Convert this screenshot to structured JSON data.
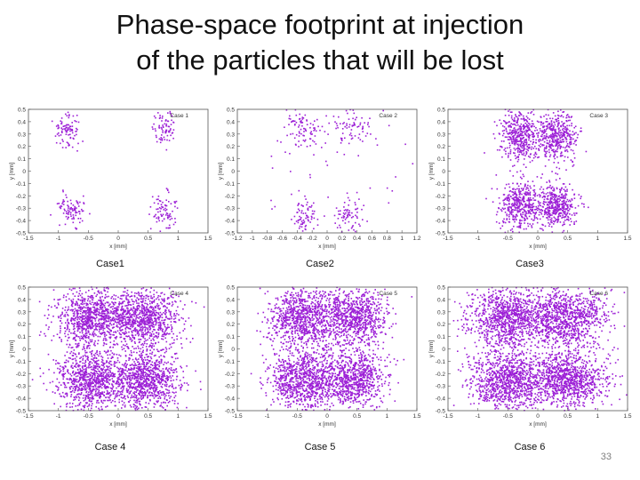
{
  "page": {
    "title_line1": "Phase-space footprint at injection",
    "title_line2": "of the particles that will be lost",
    "slide_number": "33"
  },
  "colors": {
    "points": "#9c1fd6",
    "axis": "#333333",
    "frame": "#555555"
  },
  "chart_data": [
    {
      "type": "scatter",
      "id": "case1",
      "caption": "Case1",
      "legend": "Case 1",
      "xlabel": "x [mm]",
      "ylabel": "y [mm]",
      "xlim": [
        -1.5,
        1.5
      ],
      "ylim": [
        -0.5,
        0.5
      ],
      "xticks": [
        "-1.5",
        "-1",
        "-0.5",
        "0",
        "0.5",
        "1",
        "1.5"
      ],
      "yticks": [
        "-0.5",
        "-0.4",
        "-0.3",
        "-0.2",
        "-0.1",
        "0",
        "0.1",
        "0.2",
        "0.3",
        "0.4",
        "0.5"
      ],
      "clusters": [
        {
          "cx": -0.85,
          "cy": 0.33,
          "sx": 0.11,
          "sy": 0.07,
          "n": 90
        },
        {
          "cx": 0.78,
          "cy": 0.35,
          "sx": 0.1,
          "sy": 0.07,
          "n": 80
        },
        {
          "cx": -0.78,
          "cy": -0.32,
          "sx": 0.12,
          "sy": 0.07,
          "n": 90
        },
        {
          "cx": 0.78,
          "cy": -0.32,
          "sx": 0.1,
          "sy": 0.07,
          "n": 80
        }
      ]
    },
    {
      "type": "scatter",
      "id": "case2",
      "caption": "Case2",
      "legend": "Case 2",
      "xlabel": "x [mm]",
      "ylabel": "y [mm]",
      "xlim": [
        -1.2,
        1.2
      ],
      "ylim": [
        -0.5,
        0.5
      ],
      "xticks": [
        "-1.2",
        "-1",
        "-0.8",
        "-0.6",
        "-0.4",
        "-0.2",
        "0",
        "0.2",
        "0.4",
        "0.6",
        "0.8",
        "1",
        "1.2"
      ],
      "yticks": [
        "-0.5",
        "-0.4",
        "-0.3",
        "-0.2",
        "-0.1",
        "0",
        "0.1",
        "0.2",
        "0.3",
        "0.4",
        "0.5"
      ],
      "clusters": [
        {
          "cx": -0.3,
          "cy": 0.35,
          "sx": 0.12,
          "sy": 0.08,
          "n": 90
        },
        {
          "cx": 0.32,
          "cy": 0.36,
          "sx": 0.12,
          "sy": 0.08,
          "n": 70
        },
        {
          "cx": -0.3,
          "cy": -0.36,
          "sx": 0.08,
          "sy": 0.07,
          "n": 70
        },
        {
          "cx": 0.28,
          "cy": -0.35,
          "sx": 0.08,
          "sy": 0.07,
          "n": 70
        },
        {
          "cx": 0.0,
          "cy": 0.0,
          "sx": 0.7,
          "sy": 0.3,
          "n": 50
        }
      ]
    },
    {
      "type": "scatter",
      "id": "case3",
      "caption": "Case3",
      "legend": "Case 3",
      "xlabel": "x [mm]",
      "ylabel": "y [mm]",
      "xlim": [
        -1.5,
        1.5
      ],
      "ylim": [
        -0.5,
        0.5
      ],
      "xticks": [
        "-1.5",
        "-1",
        "-0.5",
        "0",
        "0.5",
        "1",
        "1.5"
      ],
      "yticks": [
        "-0.5",
        "-0.4",
        "-0.3",
        "-0.2",
        "-0.1",
        "0",
        "0.1",
        "0.2",
        "0.3",
        "0.4",
        "0.5"
      ],
      "clusters": [
        {
          "cx": -0.3,
          "cy": 0.28,
          "sx": 0.17,
          "sy": 0.1,
          "n": 420
        },
        {
          "cx": 0.32,
          "cy": 0.28,
          "sx": 0.17,
          "sy": 0.1,
          "n": 420
        },
        {
          "cx": -0.3,
          "cy": -0.28,
          "sx": 0.17,
          "sy": 0.1,
          "n": 420
        },
        {
          "cx": 0.32,
          "cy": -0.28,
          "sx": 0.17,
          "sy": 0.1,
          "n": 420
        }
      ]
    },
    {
      "type": "scatter",
      "id": "case4",
      "caption": "Case 4",
      "legend": "Case 4",
      "xlabel": "x [mm]",
      "ylabel": "y [mm]",
      "xlim": [
        -1.5,
        1.5
      ],
      "ylim": [
        -0.5,
        0.5
      ],
      "xticks": [
        "-1.5",
        "-1",
        "-0.5",
        "0",
        "0.5",
        "1",
        "1.5"
      ],
      "yticks": [
        "-0.5",
        "-0.4",
        "-0.3",
        "-0.2",
        "-0.1",
        "0",
        "0.1",
        "0.2",
        "0.3",
        "0.4",
        "0.5"
      ],
      "clusters": [
        {
          "cx": -0.45,
          "cy": 0.25,
          "sx": 0.3,
          "sy": 0.12,
          "n": 900
        },
        {
          "cx": 0.45,
          "cy": 0.25,
          "sx": 0.3,
          "sy": 0.12,
          "n": 900
        },
        {
          "cx": -0.45,
          "cy": -0.25,
          "sx": 0.3,
          "sy": 0.12,
          "n": 900
        },
        {
          "cx": 0.45,
          "cy": -0.25,
          "sx": 0.3,
          "sy": 0.12,
          "n": 900
        }
      ]
    },
    {
      "type": "scatter",
      "id": "case5",
      "caption": "Case 5",
      "legend": "Case 5",
      "xlabel": "x [mm]",
      "ylabel": "y [mm]",
      "xlim": [
        -1.5,
        1.5
      ],
      "ylim": [
        -0.5,
        0.5
      ],
      "xticks": [
        "-1.5",
        "-1",
        "-0.5",
        "0",
        "0.5",
        "1",
        "1.5"
      ],
      "yticks": [
        "-0.5",
        "-0.4",
        "-0.3",
        "-0.2",
        "-0.1",
        "0",
        "0.1",
        "0.2",
        "0.3",
        "0.4",
        "0.5"
      ],
      "clusters": [
        {
          "cx": -0.42,
          "cy": 0.25,
          "sx": 0.28,
          "sy": 0.12,
          "n": 850
        },
        {
          "cx": 0.42,
          "cy": 0.25,
          "sx": 0.28,
          "sy": 0.12,
          "n": 850
        },
        {
          "cx": -0.42,
          "cy": -0.25,
          "sx": 0.28,
          "sy": 0.12,
          "n": 850
        },
        {
          "cx": 0.42,
          "cy": -0.25,
          "sx": 0.28,
          "sy": 0.12,
          "n": 850
        }
      ]
    },
    {
      "type": "scatter",
      "id": "case6",
      "caption": "Case 6",
      "legend": "Case 6",
      "xlabel": "x [mm]",
      "ylabel": "y [mm]",
      "xlim": [
        -1.5,
        1.5
      ],
      "ylim": [
        -0.5,
        0.5
      ],
      "xticks": [
        "-1.5",
        "-1",
        "-0.5",
        "0",
        "0.5",
        "1",
        "1.5"
      ],
      "yticks": [
        "-0.5",
        "-0.4",
        "-0.3",
        "-0.2",
        "-0.1",
        "0",
        "0.1",
        "0.2",
        "0.3",
        "0.4",
        "0.5"
      ],
      "clusters": [
        {
          "cx": -0.5,
          "cy": 0.25,
          "sx": 0.33,
          "sy": 0.12,
          "n": 1000
        },
        {
          "cx": 0.5,
          "cy": 0.25,
          "sx": 0.33,
          "sy": 0.12,
          "n": 1000
        },
        {
          "cx": -0.5,
          "cy": -0.25,
          "sx": 0.33,
          "sy": 0.12,
          "n": 1000
        },
        {
          "cx": 0.5,
          "cy": -0.25,
          "sx": 0.33,
          "sy": 0.12,
          "n": 1000
        }
      ]
    }
  ]
}
